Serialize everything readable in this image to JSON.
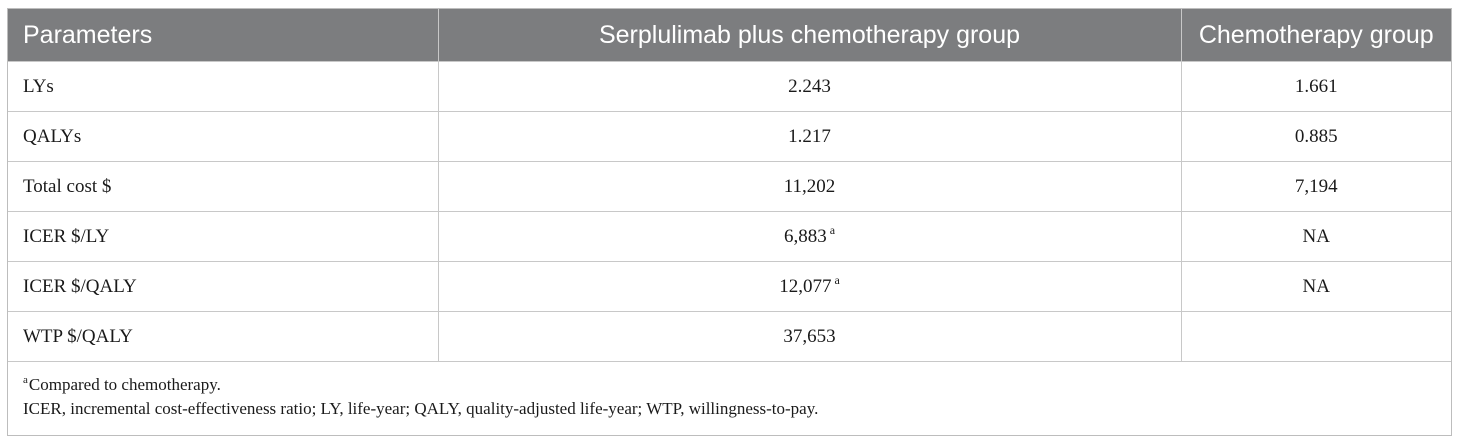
{
  "table": {
    "headers": [
      "Parameters",
      "Serplulimab plus chemotherapy group",
      "Chemotherapy group"
    ],
    "rows": [
      {
        "parameter": "LYs",
        "serplulimab": "2.243",
        "serplulimab_sup": "",
        "chemo": "1.661"
      },
      {
        "parameter": "QALYs",
        "serplulimab": "1.217",
        "serplulimab_sup": "",
        "chemo": "0.885"
      },
      {
        "parameter": "Total cost $",
        "serplulimab": "11,202",
        "serplulimab_sup": "",
        "chemo": "7,194"
      },
      {
        "parameter": "ICER $/LY",
        "serplulimab": "6,883",
        "serplulimab_sup": "a",
        "chemo": "NA"
      },
      {
        "parameter": "ICER $/QALY",
        "serplulimab": "12,077",
        "serplulimab_sup": "a",
        "chemo": "NA"
      },
      {
        "parameter": "WTP $/QALY",
        "serplulimab": "37,653",
        "serplulimab_sup": "",
        "chemo": ""
      }
    ],
    "footnotes": {
      "a_marker": "a",
      "a_text": "Compared to chemotherapy.",
      "abbreviations": "ICER, incremental cost-effectiveness ratio; LY, life-year; QALY, quality-adjusted life-year; WTP, willingness-to-pay."
    }
  }
}
